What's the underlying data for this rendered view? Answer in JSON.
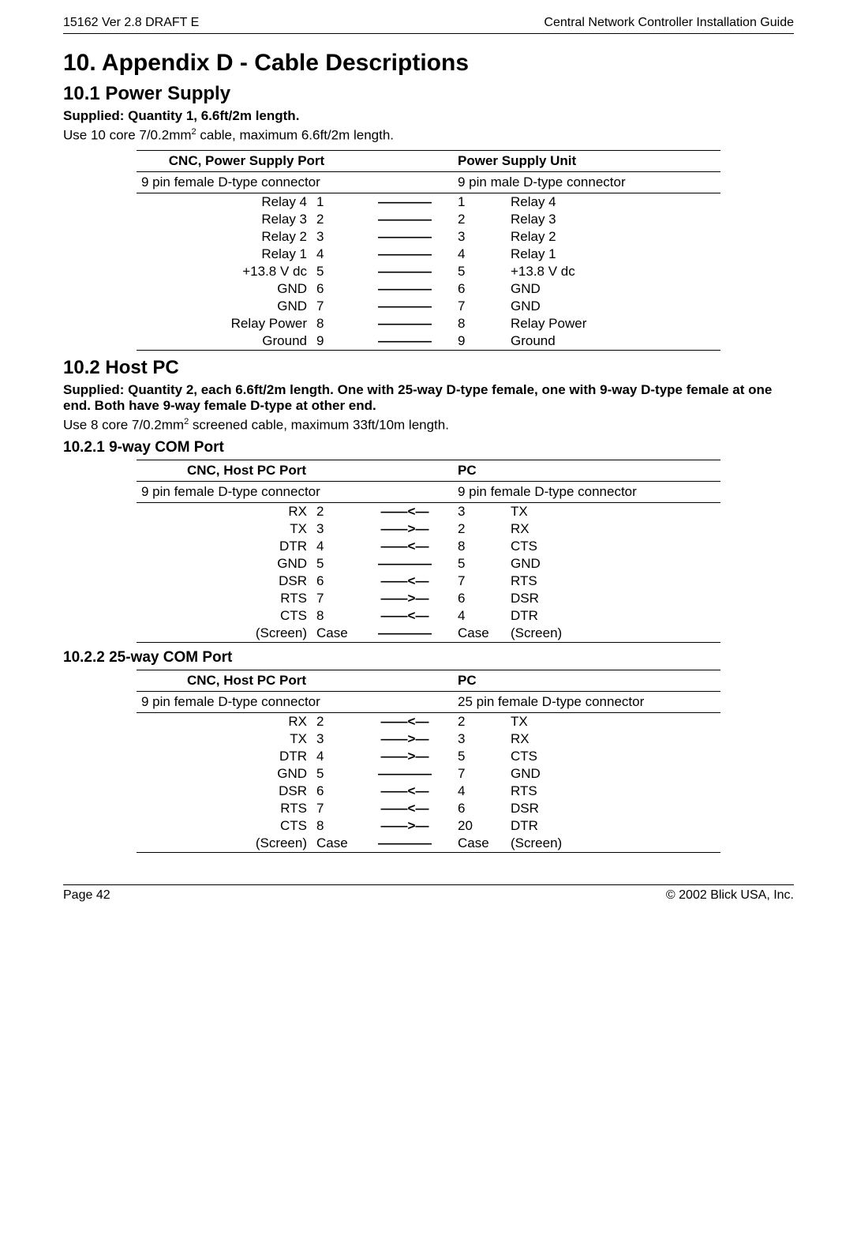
{
  "header": {
    "left": "15162 Ver 2.8 DRAFT E",
    "right": "Central Network Controller Installation Guide"
  },
  "title": "10. Appendix D - Cable Descriptions",
  "s101": {
    "heading": "10.1 Power Supply",
    "supplied": "Supplied: Quantity 1, 6.6ft/2m length.",
    "para_pre": "Use 10 core 7/0.2mm",
    "para_post": " cable, maximum 6.6ft/2m length.",
    "sup": "2",
    "hdr_l": "CNC, Power Supply Port",
    "hdr_r": "Power Supply Unit",
    "sub_l": "9 pin female D-type connector",
    "sub_r": "9 pin male D-type connector",
    "rows": [
      {
        "ln": "Relay 4",
        "lp": "1",
        "ar": "————",
        "rp": "1",
        "rn": "Relay 4"
      },
      {
        "ln": "Relay 3",
        "lp": "2",
        "ar": "————",
        "rp": "2",
        "rn": "Relay 3"
      },
      {
        "ln": "Relay 2",
        "lp": "3",
        "ar": "————",
        "rp": "3",
        "rn": "Relay 2"
      },
      {
        "ln": "Relay 1",
        "lp": "4",
        "ar": "————",
        "rp": "4",
        "rn": "Relay 1"
      },
      {
        "ln": "+13.8 V dc",
        "lp": "5",
        "ar": "————",
        "rp": "5",
        "rn": "+13.8 V dc"
      },
      {
        "ln": "GND",
        "lp": "6",
        "ar": "————",
        "rp": "6",
        "rn": "GND"
      },
      {
        "ln": "GND",
        "lp": "7",
        "ar": "————",
        "rp": "7",
        "rn": "GND"
      },
      {
        "ln": "Relay Power",
        "lp": "8",
        "ar": "————",
        "rp": "8",
        "rn": "Relay Power"
      },
      {
        "ln": "Ground",
        "lp": "9",
        "ar": "————",
        "rp": "9",
        "rn": "Ground"
      }
    ]
  },
  "s102": {
    "heading": "10.2 Host PC",
    "supplied": "Supplied: Quantity 2, each 6.6ft/2m length. One with 25-way D-type female, one with 9-way D-type female at one end. Both have 9-way female D-type at other end.",
    "para_pre": "Use 8 core 7/0.2mm",
    "para_post": " screened cable, maximum 33ft/10m length.",
    "sup": "2"
  },
  "s1021": {
    "heading": "10.2.1 9-way COM Port",
    "hdr_l": "CNC, Host PC Port",
    "hdr_r": "PC",
    "sub_l": "9 pin female D-type connector",
    "sub_r": "9 pin female D-type connector",
    "rows": [
      {
        "ln": "RX",
        "lp": "2",
        "ar": "——<—",
        "rp": "3",
        "rn": "TX"
      },
      {
        "ln": "TX",
        "lp": "3",
        "ar": "——>—",
        "rp": "2",
        "rn": "RX"
      },
      {
        "ln": "DTR",
        "lp": "4",
        "ar": "——<—",
        "rp": "8",
        "rn": "CTS"
      },
      {
        "ln": "GND",
        "lp": "5",
        "ar": "————",
        "rp": "5",
        "rn": "GND"
      },
      {
        "ln": "DSR",
        "lp": "6",
        "ar": "——<—",
        "rp": "7",
        "rn": "RTS"
      },
      {
        "ln": "RTS",
        "lp": "7",
        "ar": "——>—",
        "rp": "6",
        "rn": "DSR"
      },
      {
        "ln": "CTS",
        "lp": "8",
        "ar": "——<—",
        "rp": "4",
        "rn": "DTR"
      },
      {
        "ln": "(Screen)",
        "lp": "Case",
        "ar": "————",
        "rp": "Case",
        "rn": "(Screen)"
      }
    ]
  },
  "s1022": {
    "heading": "10.2.2 25-way COM Port",
    "hdr_l": "CNC, Host PC Port",
    "hdr_r": "PC",
    "sub_l": "9 pin female D-type connector",
    "sub_r": "25 pin female D-type connector",
    "rows": [
      {
        "ln": "RX",
        "lp": "2",
        "ar": "——<—",
        "rp": "2",
        "rn": "TX"
      },
      {
        "ln": "TX",
        "lp": "3",
        "ar": "——>—",
        "rp": "3",
        "rn": "RX"
      },
      {
        "ln": "DTR",
        "lp": "4",
        "ar": "——>—",
        "rp": "5",
        "rn": "CTS"
      },
      {
        "ln": "GND",
        "lp": "5",
        "ar": "————",
        "rp": "7",
        "rn": "GND"
      },
      {
        "ln": "DSR",
        "lp": "6",
        "ar": "——<—",
        "rp": "4",
        "rn": "RTS"
      },
      {
        "ln": "RTS",
        "lp": "7",
        "ar": "——<—",
        "rp": "6",
        "rn": "DSR"
      },
      {
        "ln": "CTS",
        "lp": "8",
        "ar": "——>—",
        "rp": "20",
        "rn": "DTR"
      },
      {
        "ln": "(Screen)",
        "lp": "Case",
        "ar": "————",
        "rp": "Case",
        "rn": "(Screen)"
      }
    ]
  },
  "footer": {
    "left": "Page 42",
    "right": "© 2002 Blick USA, Inc."
  }
}
